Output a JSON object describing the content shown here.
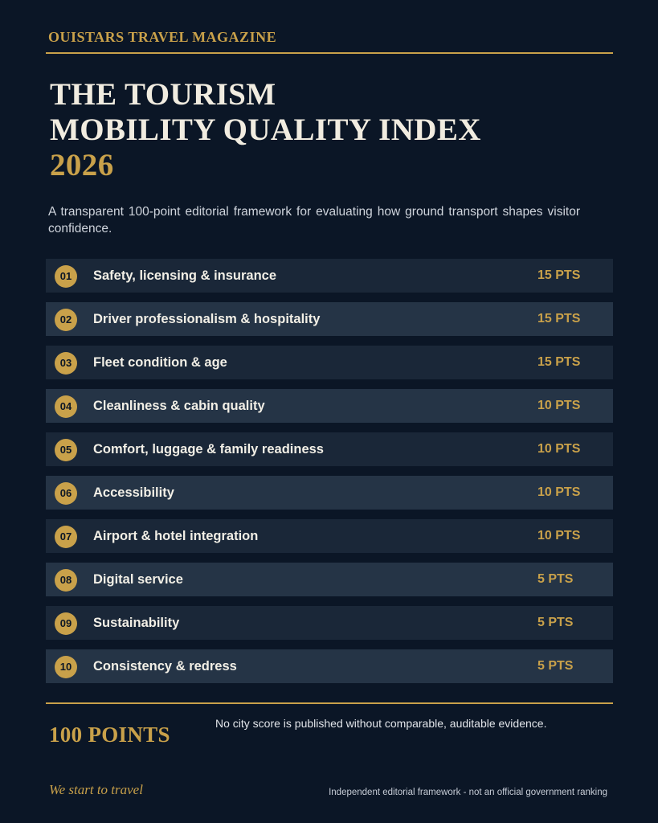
{
  "masthead": "OUISTARS TRAVEL MAGAZINE",
  "title": {
    "line1": "THE TOURISM",
    "line2": "MOBILITY QUALITY INDEX",
    "year": "2026"
  },
  "subtitle": "A transparent 100-point editorial framework for evaluating how ground transport shapes visitor confidence.",
  "criteria": [
    {
      "num": "01",
      "label": "Safety, licensing & insurance",
      "points": "15 PTS"
    },
    {
      "num": "02",
      "label": "Driver professionalism & hospitality",
      "points": "15 PTS"
    },
    {
      "num": "03",
      "label": "Fleet condition & age",
      "points": "15 PTS"
    },
    {
      "num": "04",
      "label": "Cleanliness & cabin quality",
      "points": "10 PTS"
    },
    {
      "num": "05",
      "label": "Comfort, luggage & family readiness",
      "points": "10 PTS"
    },
    {
      "num": "06",
      "label": "Accessibility",
      "points": "10 PTS"
    },
    {
      "num": "07",
      "label": "Airport & hotel integration",
      "points": "10 PTS"
    },
    {
      "num": "08",
      "label": "Digital service",
      "points": "5 PTS"
    },
    {
      "num": "09",
      "label": "Sustainability",
      "points": "5 PTS"
    },
    {
      "num": "10",
      "label": "Consistency & redress",
      "points": "5 PTS"
    }
  ],
  "footer": {
    "total": "100 POINTS",
    "note": "No city score is published without comparable, auditable evidence.",
    "tagline": "We start to travel",
    "disclaimer": "Independent editorial framework - not an official government ranking"
  },
  "colors": {
    "background": "#0b1626",
    "accent_gold": "#c9a14a",
    "row_dark": "#1a2738",
    "row_light": "#253446"
  }
}
